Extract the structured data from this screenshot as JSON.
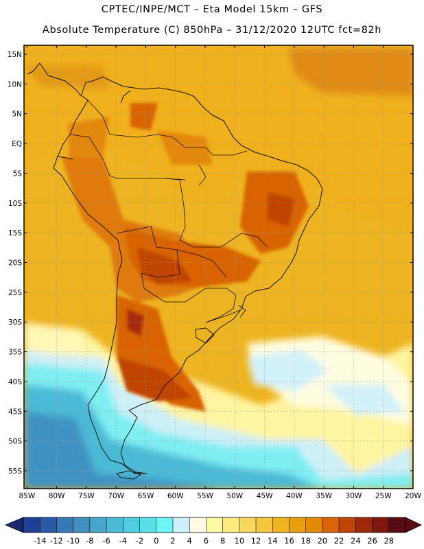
{
  "header": {
    "line1": "CPTEC/INPE/MCT –  Eta Model 15km – GFS",
    "line2": "Absolute Temperature (C) 850hPa – 31/12/2020 12UTC fct=82h"
  },
  "map": {
    "lat_labels": [
      "15N",
      "10N",
      "5N",
      "EQ",
      "5S",
      "10S",
      "15S",
      "20S",
      "25S",
      "30S",
      "35S",
      "40S",
      "45S",
      "50S",
      "55S"
    ],
    "lon_labels": [
      "85W",
      "80W",
      "75W",
      "70W",
      "65W",
      "60W",
      "55W",
      "50W",
      "45W",
      "40W",
      "35W",
      "30W",
      "25W",
      "20W"
    ],
    "lat_values": [
      15,
      10,
      5,
      0,
      -5,
      -10,
      -15,
      -20,
      -25,
      -30,
      -35,
      -40,
      -45,
      -50,
      -55
    ],
    "lon_values": [
      -85,
      -80,
      -75,
      -70,
      -65,
      -60,
      -55,
      -50,
      -45,
      -40,
      -35,
      -30,
      -25,
      -20
    ],
    "extent": {
      "lon_min": -85.5,
      "lon_max": -20.0,
      "lat_min": -58.0,
      "lat_max": 16.5
    }
  },
  "colorbar": {
    "labels": [
      "-14",
      "-12",
      "-10",
      "-8",
      "-6",
      "-4",
      "-2",
      "0",
      "2",
      "4",
      "6",
      "8",
      "10",
      "12",
      "14",
      "16",
      "18",
      "20",
      "22",
      "24",
      "26",
      "28"
    ],
    "colors": [
      "#1f3f99",
      "#2a5aa8",
      "#3578b6",
      "#4090c2",
      "#46a6cd",
      "#4bbad6",
      "#50cddf",
      "#58dfe8",
      "#70f5f5",
      "#ccf0fa",
      "#fff8e4",
      "#fff8a4",
      "#ffe97c",
      "#f7d760",
      "#f4c53e",
      "#eeb320",
      "#e8a010",
      "#e48808",
      "#d86404",
      "#c04406",
      "#a02808",
      "#801810",
      "#5a0c14"
    ],
    "under_color": "#1a2870",
    "over_color": "#5a0c14"
  }
}
